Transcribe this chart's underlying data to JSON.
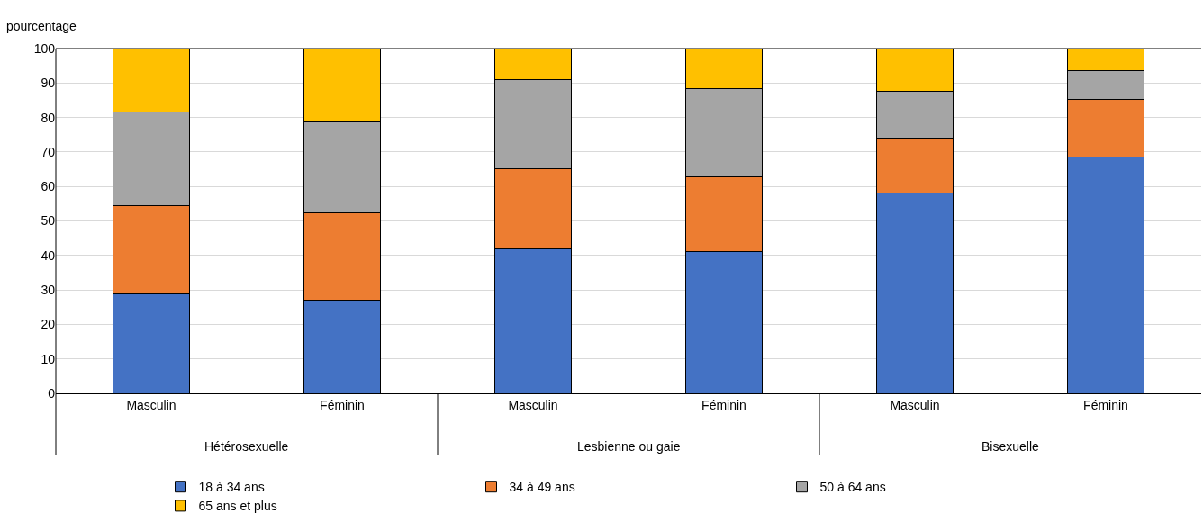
{
  "chart_data": {
    "type": "bar",
    "stacked": true,
    "ylabel": "pourcentage",
    "categories": [
      "Masculin",
      "Féminin",
      "Masculin",
      "Féminin",
      "Masculin",
      "Féminin"
    ],
    "annotations": [
      "Hétérosexuelle",
      "Lesbienne ou gaie",
      "Bisexuelle"
    ],
    "series": [
      {
        "name": "18 à 34 ans",
        "color": "#4472c4",
        "values": [
          28.9,
          27.1,
          41.9,
          41.0,
          58.2,
          68.5
        ]
      },
      {
        "name": "34 à 49 ans",
        "color": "#ed7d31",
        "values": [
          25.6,
          25.2,
          23.3,
          21.8,
          15.8,
          16.7
        ]
      },
      {
        "name": "50 à 64 ans",
        "color": "#a5a5a5",
        "values": [
          27.2,
          26.5,
          25.7,
          25.5,
          13.7,
          8.5
        ]
      },
      {
        "name": "65 ans et plus",
        "color": "#ffc000",
        "values": [
          18.3,
          21.2,
          9.1,
          11.7,
          12.3,
          6.3
        ]
      }
    ],
    "ylim": [
      0,
      100
    ],
    "yticks": [
      0,
      10,
      20,
      30,
      40,
      50,
      60,
      70,
      80,
      90,
      100
    ],
    "grid": "y",
    "legend": "bottom"
  }
}
